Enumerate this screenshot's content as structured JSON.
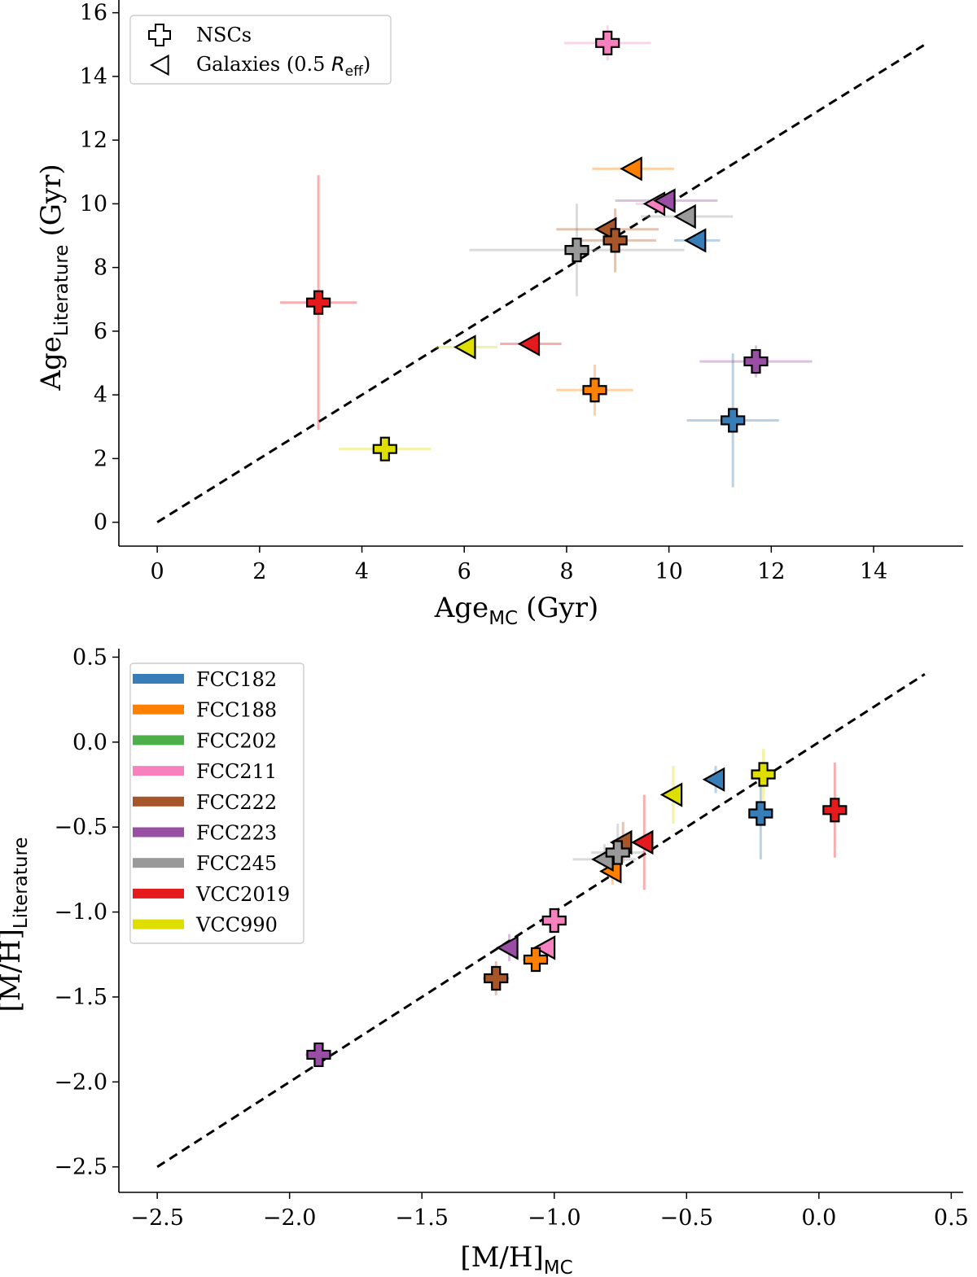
{
  "colors": {
    "FCC182": "#377eb8",
    "FCC188": "#ff7f00",
    "FCC202": "#4daf4a",
    "FCC211": "#f781bf",
    "FCC222": "#a65628",
    "FCC223": "#984ea3",
    "FCC245": "#999999",
    "VCC2019": "#e41a1c",
    "VCC990": "#dede00"
  },
  "chart_data": [
    {
      "type": "scatter",
      "x_axis": {
        "base": "Age",
        "sub": "MC",
        "unit": "(Gyr)"
      },
      "y_axis": {
        "base": "Age",
        "sub": "Literature",
        "unit": "(Gyr)"
      },
      "xlim": [
        -0.75,
        15.75
      ],
      "ylim": [
        -0.75,
        16.4
      ],
      "xticks": [
        "0",
        "2",
        "4",
        "6",
        "8",
        "10",
        "12",
        "14"
      ],
      "yticks": [
        "0",
        "2",
        "4",
        "6",
        "8",
        "10",
        "12",
        "14",
        "16"
      ],
      "one_to_one_line": [
        [
          0,
          0
        ],
        [
          15,
          15
        ]
      ],
      "legend": {
        "nsc_label": "NSCs",
        "gal_label_prefix": "Galaxies (0.5 ",
        "gal_label_r": "R",
        "gal_label_sub": "eff",
        "gal_label_suffix": ")"
      },
      "nscs": [
        {
          "object": "FCC182",
          "x": 11.25,
          "y": 3.2,
          "xerr": 0.9,
          "yerr": 2.1
        },
        {
          "object": "FCC188",
          "x": 8.55,
          "y": 4.15,
          "xerr": 0.75,
          "yerr": 0.8
        },
        {
          "object": "FCC211",
          "x": 8.8,
          "y": 15.05,
          "xerr": 0.85,
          "yerr": 0.55
        },
        {
          "object": "FCC222",
          "x": 8.95,
          "y": 8.85,
          "xerr": 0.8,
          "yerr": 1.0
        },
        {
          "object": "FCC223",
          "x": 11.7,
          "y": 5.05,
          "xerr": 1.1,
          "yerr": 0.5
        },
        {
          "object": "FCC245",
          "x": 8.2,
          "y": 8.55,
          "xerr": 2.1,
          "yerr": 1.45
        },
        {
          "object": "VCC2019",
          "x": 3.15,
          "y": 6.9,
          "xerr": 0.75,
          "yerr": 4.0
        },
        {
          "object": "VCC990",
          "x": 4.45,
          "y": 2.3,
          "xerr": 0.9,
          "yerr": 0.2
        }
      ],
      "galaxies": [
        {
          "object": "FCC182",
          "x": 10.55,
          "y": 8.85,
          "xerr": 0.45,
          "yerr": 0.1
        },
        {
          "object": "FCC188",
          "x": 9.3,
          "y": 11.1,
          "xerr": 0.8,
          "yerr": 0.1
        },
        {
          "object": "FCC211",
          "x": 9.75,
          "y": 10.0,
          "xerr": 0.4,
          "yerr": 0.1
        },
        {
          "object": "FCC222",
          "x": 8.8,
          "y": 9.2,
          "xerr": 1.0,
          "yerr": 0.1
        },
        {
          "object": "FCC223",
          "x": 9.95,
          "y": 10.1,
          "xerr": 1.0,
          "yerr": 0.1
        },
        {
          "object": "FCC245",
          "x": 10.35,
          "y": 9.6,
          "xerr": 0.9,
          "yerr": 0.1
        },
        {
          "object": "VCC2019",
          "x": 7.3,
          "y": 5.6,
          "xerr": 0.6,
          "yerr": 0.1
        },
        {
          "object": "VCC990",
          "x": 6.05,
          "y": 5.5,
          "xerr": 0.6,
          "yerr": 0.1
        }
      ]
    },
    {
      "type": "scatter",
      "x_axis": {
        "base": "[M/H]",
        "sub": "MC",
        "unit": ""
      },
      "y_axis": {
        "base": "[M/H]",
        "sub": "Literature",
        "unit": ""
      },
      "xlim": [
        -2.645,
        0.545
      ],
      "ylim": [
        -2.65,
        0.55
      ],
      "xticks": [
        "−2.5",
        "−2.0",
        "−1.5",
        "−1.0",
        "−0.5",
        "0.0",
        "0.5"
      ],
      "xtick_values": [
        -2.5,
        -2.0,
        -1.5,
        -1.0,
        -0.5,
        0.0,
        0.5
      ],
      "yticks": [
        "−2.5",
        "−2.0",
        "−1.5",
        "−1.0",
        "−0.5",
        "0.0",
        "0.5"
      ],
      "ytick_values": [
        -2.5,
        -2.0,
        -1.5,
        -1.0,
        -0.5,
        0.0,
        0.5
      ],
      "one_to_one_line": [
        [
          -2.5,
          -2.5
        ],
        [
          0.4,
          0.4
        ]
      ],
      "legend": {
        "entries": [
          "FCC182",
          "FCC188",
          "FCC202",
          "FCC211",
          "FCC222",
          "FCC223",
          "FCC245",
          "VCC2019",
          "VCC990"
        ]
      },
      "nscs": [
        {
          "object": "FCC182",
          "x": -0.22,
          "y": -0.42,
          "xerr": 0.02,
          "yerr": 0.27
        },
        {
          "object": "FCC188",
          "x": -1.07,
          "y": -1.28,
          "xerr": 0.05,
          "yerr": 0.06
        },
        {
          "object": "FCC211",
          "x": -1.0,
          "y": -1.05,
          "xerr": 0.04,
          "yerr": 0.05
        },
        {
          "object": "FCC222",
          "x": -1.22,
          "y": -1.39,
          "xerr": 0.05,
          "yerr": 0.1
        },
        {
          "object": "FCC223",
          "x": -1.89,
          "y": -1.84,
          "xerr": 0.05,
          "yerr": 0.04
        },
        {
          "object": "FCC245",
          "x": -0.76,
          "y": -0.65,
          "xerr": 0.1,
          "yerr": 0.17
        },
        {
          "object": "VCC2019",
          "x": 0.06,
          "y": -0.4,
          "xerr": 0.02,
          "yerr": 0.28
        },
        {
          "object": "VCC990",
          "x": -0.21,
          "y": -0.19,
          "xerr": 0.02,
          "yerr": 0.15
        }
      ],
      "galaxies": [
        {
          "object": "FCC182",
          "x": -0.39,
          "y": -0.22,
          "xerr": 0.02,
          "yerr": 0.08
        },
        {
          "object": "FCC188",
          "x": -0.78,
          "y": -0.76,
          "xerr": 0.02,
          "yerr": 0.08
        },
        {
          "object": "FCC211",
          "x": -1.03,
          "y": -1.21,
          "xerr": 0.02,
          "yerr": 0.04
        },
        {
          "object": "FCC222",
          "x": -0.74,
          "y": -0.59,
          "xerr": 0.02,
          "yerr": 0.12
        },
        {
          "object": "FCC223",
          "x": -1.17,
          "y": -1.21,
          "xerr": 0.02,
          "yerr": 0.08
        },
        {
          "object": "FCC245",
          "x": -0.81,
          "y": -0.69,
          "xerr": 0.12,
          "yerr": 0.09
        },
        {
          "object": "VCC2019",
          "x": -0.66,
          "y": -0.59,
          "xerr": 0.02,
          "yerr": 0.28
        },
        {
          "object": "VCC990",
          "x": -0.55,
          "y": -0.31,
          "xerr": 0.02,
          "yerr": 0.17
        }
      ]
    }
  ]
}
